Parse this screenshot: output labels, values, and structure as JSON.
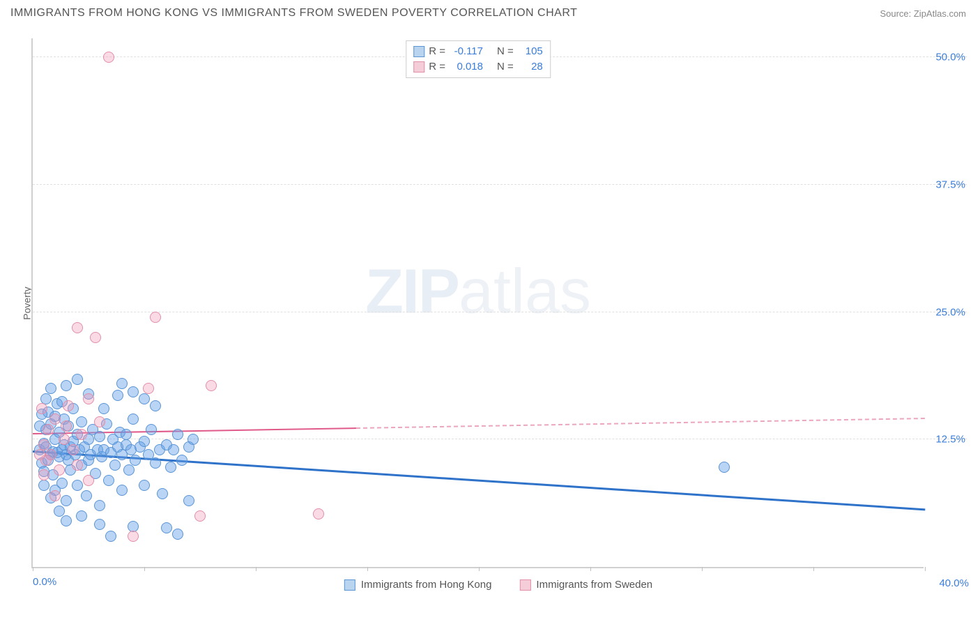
{
  "header": {
    "title": "IMMIGRANTS FROM HONG KONG VS IMMIGRANTS FROM SWEDEN POVERTY CORRELATION CHART",
    "source": "Source: ZipAtlas.com"
  },
  "watermark": {
    "part1": "ZIP",
    "part2": "atlas"
  },
  "chart": {
    "type": "scatter",
    "y_axis_label": "Poverty",
    "xlim": [
      0,
      40
    ],
    "ylim": [
      0,
      52
    ],
    "x_ticks": [
      0,
      5,
      10,
      15,
      20,
      25,
      30,
      35,
      40
    ],
    "x_tick_labels": {
      "0": "0.0%",
      "40": "40.0%"
    },
    "y_gridlines": [
      12.5,
      25.0,
      37.5,
      50.0
    ],
    "y_tick_labels": [
      "12.5%",
      "25.0%",
      "37.5%",
      "50.0%"
    ],
    "background_color": "#ffffff",
    "grid_color": "#e0e0e0",
    "axis_color": "#d0d0d0",
    "tick_label_color": "#3b7dd8",
    "point_radius": 8,
    "series": [
      {
        "name": "Immigrants from Hong Kong",
        "fill_color": "rgba(100,160,230,0.45)",
        "stroke_color": "#5a95d6",
        "swatch_fill": "#b9d4ef",
        "swatch_border": "#5a95d6",
        "R": "-0.117",
        "N": "105",
        "trend": {
          "y_at_x0": 11.2,
          "y_at_x40": 5.5,
          "color": "#2f72c9",
          "width": 3
        },
        "points": [
          [
            0.3,
            11.5
          ],
          [
            0.4,
            10.2
          ],
          [
            0.5,
            12.1
          ],
          [
            0.5,
            9.4
          ],
          [
            0.6,
            11.8
          ],
          [
            0.6,
            13.5
          ],
          [
            0.7,
            15.2
          ],
          [
            0.7,
            10.5
          ],
          [
            0.8,
            11.0
          ],
          [
            0.8,
            14.0
          ],
          [
            0.9,
            11.3
          ],
          [
            0.9,
            9.0
          ],
          [
            1.0,
            12.5
          ],
          [
            1.0,
            7.5
          ],
          [
            1.1,
            11.2
          ],
          [
            1.1,
            16.0
          ],
          [
            1.2,
            10.8
          ],
          [
            1.2,
            13.2
          ],
          [
            1.3,
            11.5
          ],
          [
            1.3,
            8.2
          ],
          [
            1.4,
            12.0
          ],
          [
            1.4,
            14.5
          ],
          [
            1.5,
            11.0
          ],
          [
            1.5,
            6.5
          ],
          [
            1.6,
            10.5
          ],
          [
            1.6,
            13.8
          ],
          [
            1.7,
            11.8
          ],
          [
            1.7,
            9.5
          ],
          [
            1.8,
            12.3
          ],
          [
            1.8,
            15.5
          ],
          [
            1.9,
            11.0
          ],
          [
            2.0,
            8.0
          ],
          [
            2.0,
            13.0
          ],
          [
            2.1,
            11.5
          ],
          [
            2.2,
            10.0
          ],
          [
            2.2,
            14.2
          ],
          [
            2.3,
            11.8
          ],
          [
            2.4,
            7.0
          ],
          [
            2.5,
            12.5
          ],
          [
            2.5,
            10.5
          ],
          [
            2.6,
            11.0
          ],
          [
            2.7,
            13.5
          ],
          [
            2.8,
            9.2
          ],
          [
            2.9,
            11.5
          ],
          [
            3.0,
            12.8
          ],
          [
            3.0,
            6.0
          ],
          [
            3.1,
            10.8
          ],
          [
            3.2,
            11.5
          ],
          [
            3.3,
            14.0
          ],
          [
            3.4,
            8.5
          ],
          [
            3.5,
            11.2
          ],
          [
            3.6,
            12.5
          ],
          [
            3.7,
            10.0
          ],
          [
            3.8,
            11.8
          ],
          [
            3.9,
            13.2
          ],
          [
            4.0,
            7.5
          ],
          [
            4.0,
            11.0
          ],
          [
            4.2,
            12.0
          ],
          [
            4.3,
            9.5
          ],
          [
            4.4,
            11.5
          ],
          [
            4.5,
            14.5
          ],
          [
            4.6,
            10.5
          ],
          [
            4.8,
            11.8
          ],
          [
            5.0,
            12.3
          ],
          [
            5.0,
            8.0
          ],
          [
            5.2,
            11.0
          ],
          [
            5.3,
            13.5
          ],
          [
            5.5,
            10.2
          ],
          [
            5.5,
            15.8
          ],
          [
            5.7,
            11.5
          ],
          [
            5.8,
            7.2
          ],
          [
            6.0,
            12.0
          ],
          [
            6.0,
            3.8
          ],
          [
            6.2,
            9.8
          ],
          [
            6.3,
            11.5
          ],
          [
            6.5,
            13.0
          ],
          [
            6.7,
            10.5
          ],
          [
            7.0,
            11.8
          ],
          [
            7.0,
            6.5
          ],
          [
            7.2,
            12.5
          ],
          [
            3.5,
            3.0
          ],
          [
            4.5,
            4.0
          ],
          [
            2.5,
            17.0
          ],
          [
            1.5,
            17.8
          ],
          [
            2.0,
            18.4
          ],
          [
            6.5,
            3.2
          ],
          [
            31.0,
            9.8
          ],
          [
            0.5,
            8.0
          ],
          [
            0.8,
            6.8
          ],
          [
            1.2,
            5.5
          ],
          [
            1.5,
            4.5
          ],
          [
            2.2,
            5.0
          ],
          [
            3.0,
            4.2
          ],
          [
            4.0,
            18.0
          ],
          [
            4.5,
            17.2
          ],
          [
            5.0,
            16.5
          ],
          [
            0.3,
            13.8
          ],
          [
            0.4,
            15.0
          ],
          [
            0.6,
            16.5
          ],
          [
            0.8,
            17.5
          ],
          [
            1.0,
            14.8
          ],
          [
            1.3,
            16.2
          ],
          [
            3.2,
            15.5
          ],
          [
            3.8,
            16.8
          ],
          [
            4.2,
            13.0
          ]
        ]
      },
      {
        "name": "Immigrants from Sweden",
        "fill_color": "rgba(240,150,180,0.35)",
        "stroke_color": "#e28fa8",
        "swatch_fill": "#f5cdd9",
        "swatch_border": "#e28fa8",
        "R": "0.018",
        "N": "28",
        "trend": {
          "y_at_x0": 13.0,
          "y_at_x40": 14.5,
          "color": "#e05a8a",
          "width": 2,
          "solid_until_x": 14.5,
          "dash_after": true
        },
        "points": [
          [
            0.4,
            15.5
          ],
          [
            0.5,
            12.0
          ],
          [
            0.6,
            10.5
          ],
          [
            0.7,
            13.5
          ],
          [
            0.8,
            11.0
          ],
          [
            1.0,
            14.5
          ],
          [
            1.2,
            9.5
          ],
          [
            1.4,
            12.5
          ],
          [
            1.6,
            15.8
          ],
          [
            1.8,
            11.5
          ],
          [
            2.0,
            10.0
          ],
          [
            2.2,
            13.0
          ],
          [
            2.5,
            8.5
          ],
          [
            2.0,
            23.5
          ],
          [
            2.8,
            22.5
          ],
          [
            3.4,
            50.0
          ],
          [
            5.5,
            24.5
          ],
          [
            5.2,
            17.5
          ],
          [
            8.0,
            17.8
          ],
          [
            7.5,
            5.0
          ],
          [
            12.8,
            5.2
          ],
          [
            4.5,
            3.0
          ],
          [
            2.5,
            16.5
          ],
          [
            0.3,
            11.0
          ],
          [
            0.5,
            9.0
          ],
          [
            1.0,
            7.0
          ],
          [
            1.5,
            13.8
          ],
          [
            3.0,
            14.2
          ]
        ]
      }
    ]
  },
  "legend_top": {
    "R_label": "R =",
    "N_label": "N ="
  }
}
